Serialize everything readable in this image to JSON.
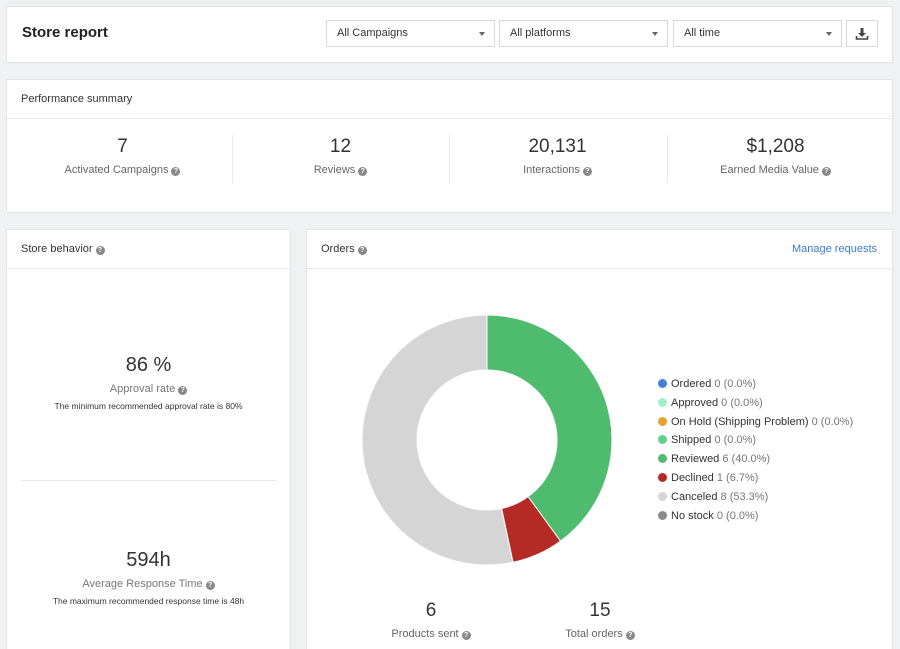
{
  "header": {
    "title": "Store report",
    "filters": [
      {
        "selected": "All Campaigns"
      },
      {
        "selected": "All platforms"
      },
      {
        "selected": "All time"
      }
    ],
    "download_icon": "download-icon"
  },
  "performance": {
    "title": "Performance summary",
    "stats": [
      {
        "value": "7",
        "label": "Activated Campaigns"
      },
      {
        "value": "12",
        "label": "Reviews"
      },
      {
        "value": "20,131",
        "label": "Interactions"
      },
      {
        "value": "$1,208",
        "label": "Earned Media Value"
      }
    ]
  },
  "store_behavior": {
    "title": "Store behavior",
    "approval": {
      "value": "86 %",
      "label": "Approval rate",
      "note": "The minimum recommended approval rate is 80%"
    },
    "response": {
      "value": "594h",
      "label": "Average Response Time",
      "note": "The maximum recommended response time is 48h"
    }
  },
  "orders": {
    "title": "Orders",
    "manage_link": "Manage requests",
    "products_sent": {
      "value": "6",
      "label": "Products sent"
    },
    "total_orders": {
      "value": "15",
      "label": "Total orders"
    }
  },
  "chart_data": {
    "type": "pie",
    "donut": true,
    "legend_position": "right",
    "series": [
      {
        "name": "Ordered",
        "value": 0,
        "display": "0 (0.0%)",
        "color": "#3f7fd8"
      },
      {
        "name": "Approved",
        "value": 0,
        "display": "0 (0.0%)",
        "color": "#9ff0c8"
      },
      {
        "name": "On Hold (Shipping Problem)",
        "value": 0,
        "display": "0 (0.0%)",
        "color": "#e8a030"
      },
      {
        "name": "Shipped",
        "value": 0,
        "display": "0 (0.0%)",
        "color": "#5fd08c"
      },
      {
        "name": "Reviewed",
        "value": 6,
        "display": "6 (40.0%)",
        "color": "#4fbb6e"
      },
      {
        "name": "Declined",
        "value": 1,
        "display": "1 (6.7%)",
        "color": "#b52a25"
      },
      {
        "name": "Canceled",
        "value": 8,
        "display": "8 (53.3%)",
        "color": "#d5d5d5"
      },
      {
        "name": "No stock",
        "value": 0,
        "display": "0 (0.0%)",
        "color": "#8a8a8a"
      }
    ]
  }
}
